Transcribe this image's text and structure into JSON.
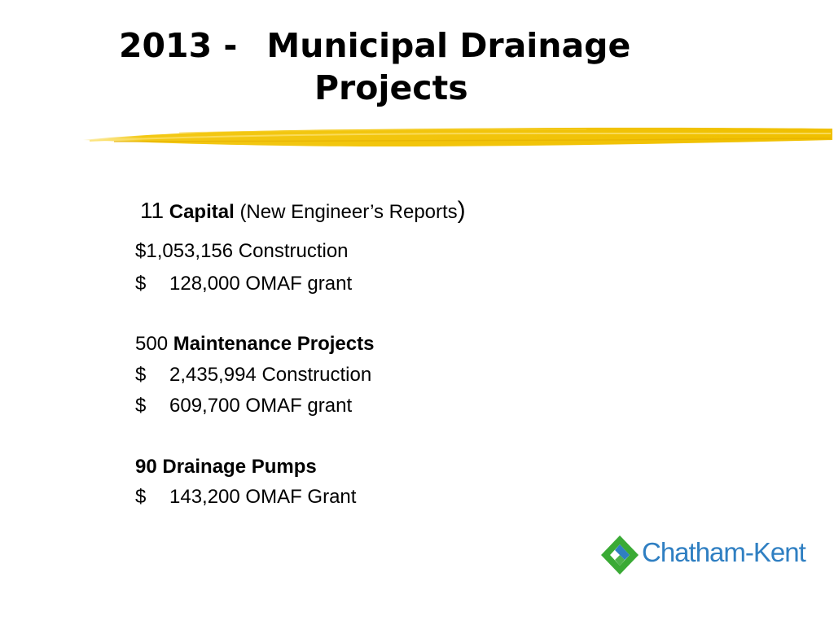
{
  "title": {
    "year_prefix": "2013 -",
    "line1": "Municipal Drainage",
    "line2": "Projects"
  },
  "capital": {
    "count": "11",
    "label": "Capital",
    "note": "(New Engineer’s Reports",
    "close_paren": ")",
    "construction": "$1,053,156 Construction",
    "grant_symbol": "$",
    "grant": "128,000 OMAF grant"
  },
  "maintenance": {
    "count": "500",
    "label": "Maintenance Projects",
    "construction_symbol": "$",
    "construction": "2,435,994 Construction",
    "grant_symbol": "$",
    "grant": "609,700 OMAF grant"
  },
  "pumps": {
    "label": "90 Drainage Pumps",
    "grant_symbol": "$",
    "grant": "143,200 OMAF Grant"
  },
  "logo": {
    "text": "Chatham-Kent",
    "icon": "diamond-logo-icon",
    "colors": {
      "green": "#3aaa35",
      "blue": "#2f7fc2"
    }
  },
  "accent_color": "#f2c200"
}
